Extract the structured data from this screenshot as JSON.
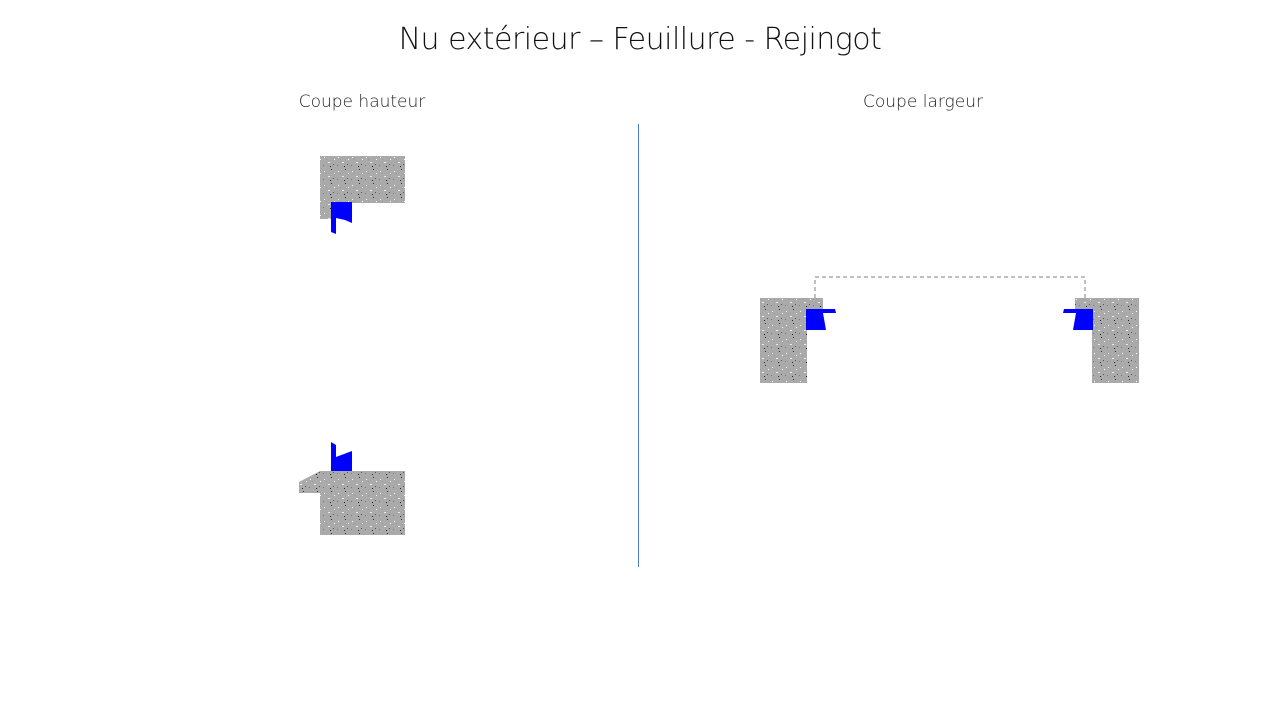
{
  "title": "Nu extérieur – Feuillure - Rejingot",
  "sections": {
    "left": {
      "label": "Coupe hauteur"
    },
    "right": {
      "label": "Coupe largeur"
    }
  },
  "colors": {
    "joinery": "#0000ff",
    "masonry": "#aaaaaa",
    "divider": "#4a7fd4",
    "outline": "#808080"
  }
}
